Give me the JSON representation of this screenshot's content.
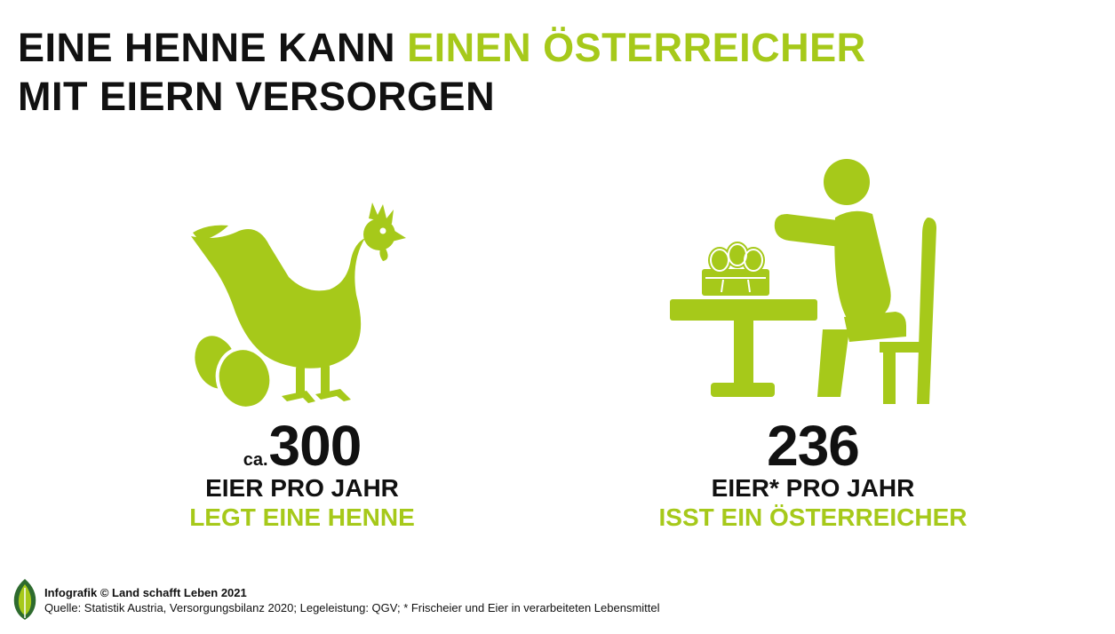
{
  "headline": {
    "part1": "EINE HENNE KANN ",
    "highlight": "EINEN ÖSTERREICHER",
    "line2": "MIT EIERN VERSORGEN"
  },
  "left": {
    "prefix": "ca.",
    "number": "300",
    "line1": "EIER PRO JAHR",
    "line2": "LEGT EINE HENNE",
    "icon": "hen-with-eggs-icon"
  },
  "right": {
    "number": "236",
    "line1": "EIER* PRO JAHR",
    "line2": "ISST EIN ÖSTERREICHER",
    "icon": "person-at-table-with-eggs-icon"
  },
  "footer": {
    "credit": "Infografik © Land schafft Leben 2021",
    "source": "Quelle: Statistik Austria, Versorgungsbilanz 2020; Legeleistung: QGV; * Frischeier und Eier in verarbeiteten Lebensmittel"
  },
  "colors": {
    "accent": "#a6c91a",
    "text": "#111111",
    "background": "#ffffff"
  }
}
